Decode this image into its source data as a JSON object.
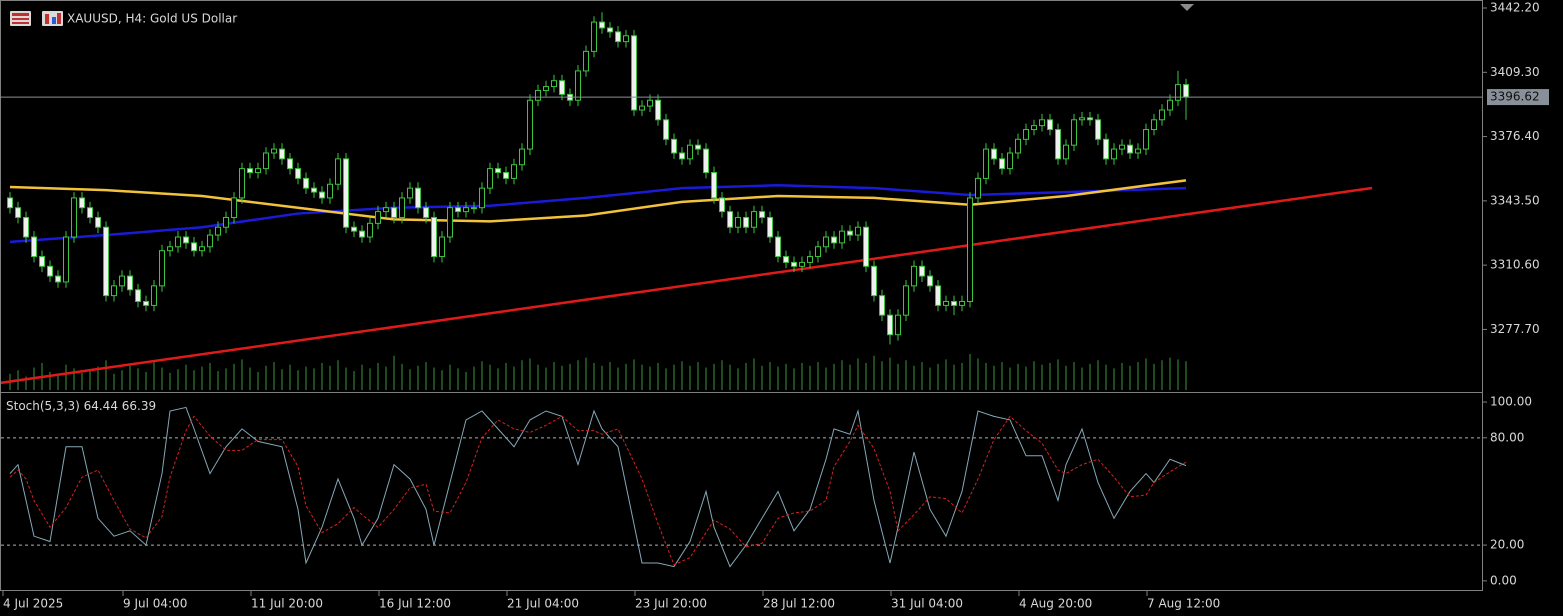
{
  "header": {
    "title": "XAUUSD, H4:  Gold US Dollar"
  },
  "chart_data": [
    {
      "type": "candlestick",
      "categories": [
        "4 Jul 2025",
        null,
        null,
        null,
        null,
        null,
        null,
        null,
        null,
        null,
        null,
        null,
        null,
        null,
        null,
        "9 Jul 04:00",
        null,
        null,
        null,
        null,
        null,
        null,
        null,
        null,
        null,
        null,
        null,
        null,
        null,
        null,
        null,
        "11 Jul 20:00",
        null,
        null,
        null,
        null,
        null,
        null,
        null,
        null,
        null,
        null,
        null,
        null,
        null,
        null,
        null,
        "16 Jul 12:00",
        null,
        null,
        null,
        null,
        null,
        null,
        null,
        null,
        null,
        null,
        null,
        null,
        null,
        null,
        null,
        "21 Jul 04:00",
        null,
        null,
        null,
        null,
        null,
        null,
        null,
        null,
        null,
        null,
        null,
        null,
        null,
        null,
        null,
        "23 Jul 20:00",
        null,
        null,
        null,
        null,
        null,
        null,
        null,
        null,
        null,
        null,
        null,
        null,
        null,
        null,
        null,
        "28 Jul 12:00",
        null,
        null,
        null,
        null,
        null,
        null,
        null,
        null,
        null,
        null,
        null,
        null,
        null,
        null,
        null,
        "31 Jul 04:00",
        null,
        null,
        null,
        null,
        null,
        null,
        null,
        null,
        null,
        null,
        null,
        null,
        null,
        null,
        null,
        "4 Aug 20:00",
        null,
        null,
        null,
        null,
        null,
        null,
        null,
        null,
        null,
        null,
        null,
        null,
        null,
        null,
        null,
        "7 Aug 12:00",
        null,
        null,
        null,
        null
      ],
      "open": [
        3345,
        3340,
        3335,
        3325,
        3315,
        3310,
        3305,
        3302,
        3325,
        3345,
        3340,
        3335,
        3330,
        3295,
        3300,
        3305,
        3298,
        3292,
        3290,
        3300,
        3318,
        3320,
        3325,
        3322,
        3318,
        3320,
        3326,
        3330,
        3335,
        3345,
        3360,
        3358,
        3360,
        3368,
        3370,
        3365,
        3360,
        3355,
        3350,
        3348,
        3345,
        3352,
        3365,
        3330,
        3328,
        3325,
        3332,
        3338,
        3340,
        3335,
        3345,
        3350,
        3340,
        3335,
        3315,
        3325,
        3340,
        3338,
        3340,
        3340,
        3350,
        3360,
        3358,
        3355,
        3362,
        3370,
        3395,
        3400,
        3402,
        3405,
        3398,
        3395,
        3410,
        3420,
        3435,
        3432,
        3430,
        3425,
        3428,
        3390,
        3392,
        3395,
        3385,
        3375,
        3368,
        3365,
        3372,
        3370,
        3358,
        3345,
        3338,
        3330,
        3335,
        3330,
        3338,
        3335,
        3325,
        3315,
        3312,
        3310,
        3312,
        3315,
        3320,
        3325,
        3322,
        3328,
        3326,
        3330,
        3310,
        3295,
        3285,
        3275,
        3285,
        3300,
        3310,
        3305,
        3300,
        3290,
        3292,
        3290,
        3292,
        3345,
        3355,
        3370,
        3365,
        3360,
        3368,
        3375,
        3380,
        3382,
        3385,
        3380,
        3365,
        3372,
        3385,
        3386,
        3385,
        3375,
        3365,
        3370,
        3372,
        3368,
        3370,
        3380,
        3385,
        3390,
        3395,
        3403
      ],
      "high": [
        3348,
        3343,
        3338,
        3328,
        3318,
        3313,
        3308,
        3328,
        3348,
        3348,
        3343,
        3338,
        3333,
        3303,
        3308,
        3308,
        3301,
        3295,
        3303,
        3321,
        3323,
        3328,
        3328,
        3325,
        3323,
        3329,
        3333,
        3338,
        3348,
        3363,
        3363,
        3363,
        3371,
        3373,
        3373,
        3368,
        3363,
        3358,
        3353,
        3351,
        3355,
        3368,
        3368,
        3333,
        3331,
        3335,
        3341,
        3343,
        3343,
        3348,
        3353,
        3353,
        3343,
        3338,
        3328,
        3343,
        3343,
        3343,
        3343,
        3353,
        3363,
        3363,
        3361,
        3365,
        3373,
        3398,
        3403,
        3405,
        3408,
        3408,
        3401,
        3413,
        3423,
        3438,
        3440,
        3435,
        3433,
        3431,
        3431,
        3395,
        3398,
        3398,
        3388,
        3378,
        3371,
        3375,
        3375,
        3373,
        3361,
        3348,
        3341,
        3338,
        3338,
        3341,
        3341,
        3338,
        3328,
        3318,
        3315,
        3315,
        3318,
        3323,
        3328,
        3328,
        3331,
        3331,
        3333,
        3333,
        3313,
        3298,
        3288,
        3288,
        3303,
        3313,
        3313,
        3308,
        3303,
        3295,
        3295,
        3295,
        3348,
        3358,
        3373,
        3373,
        3368,
        3371,
        3378,
        3383,
        3385,
        3388,
        3388,
        3383,
        3375,
        3388,
        3389,
        3389,
        3388,
        3378,
        3373,
        3375,
        3375,
        3373,
        3383,
        3388,
        3393,
        3398,
        3410,
        3406
      ],
      "low": [
        3337,
        3332,
        3322,
        3312,
        3307,
        3302,
        3299,
        3299,
        3322,
        3337,
        3332,
        3327,
        3292,
        3292,
        3297,
        3295,
        3289,
        3287,
        3287,
        3297,
        3315,
        3317,
        3319,
        3315,
        3315,
        3317,
        3323,
        3327,
        3332,
        3342,
        3355,
        3355,
        3357,
        3365,
        3362,
        3357,
        3352,
        3347,
        3345,
        3342,
        3342,
        3349,
        3327,
        3325,
        3322,
        3322,
        3329,
        3335,
        3332,
        3332,
        3342,
        3337,
        3332,
        3312,
        3312,
        3322,
        3335,
        3335,
        3337,
        3337,
        3347,
        3355,
        3352,
        3352,
        3359,
        3367,
        3392,
        3397,
        3399,
        3395,
        3392,
        3392,
        3407,
        3417,
        3429,
        3427,
        3422,
        3422,
        3387,
        3387,
        3389,
        3382,
        3372,
        3365,
        3362,
        3362,
        3367,
        3355,
        3342,
        3335,
        3327,
        3327,
        3327,
        3327,
        3332,
        3322,
        3312,
        3309,
        3307,
        3307,
        3309,
        3312,
        3317,
        3319,
        3319,
        3323,
        3323,
        3307,
        3292,
        3282,
        3270,
        3272,
        3282,
        3297,
        3302,
        3297,
        3287,
        3287,
        3285,
        3287,
        3289,
        3342,
        3352,
        3362,
        3357,
        3357,
        3365,
        3372,
        3377,
        3379,
        3377,
        3362,
        3362,
        3369,
        3382,
        3382,
        3372,
        3362,
        3362,
        3367,
        3365,
        3365,
        3367,
        3377,
        3382,
        3387,
        3392,
        3385
      ],
      "close": [
        3340,
        3335,
        3325,
        3315,
        3310,
        3305,
        3302,
        3325,
        3345,
        3340,
        3335,
        3330,
        3295,
        3300,
        3305,
        3298,
        3292,
        3290,
        3300,
        3318,
        3320,
        3325,
        3322,
        3318,
        3320,
        3326,
        3330,
        3335,
        3345,
        3360,
        3358,
        3360,
        3368,
        3370,
        3365,
        3360,
        3355,
        3350,
        3348,
        3345,
        3352,
        3365,
        3330,
        3328,
        3325,
        3332,
        3338,
        3340,
        3335,
        3345,
        3350,
        3340,
        3335,
        3315,
        3325,
        3340,
        3338,
        3340,
        3340,
        3350,
        3360,
        3358,
        3355,
        3362,
        3370,
        3395,
        3400,
        3402,
        3405,
        3398,
        3395,
        3410,
        3420,
        3435,
        3432,
        3430,
        3425,
        3428,
        3390,
        3392,
        3395,
        3385,
        3375,
        3368,
        3365,
        3372,
        3370,
        3358,
        3345,
        3338,
        3330,
        3335,
        3330,
        3338,
        3335,
        3325,
        3315,
        3312,
        3310,
        3312,
        3315,
        3320,
        3325,
        3322,
        3328,
        3326,
        3330,
        3310,
        3295,
        3285,
        3275,
        3285,
        3300,
        3310,
        3305,
        3300,
        3290,
        3292,
        3290,
        3292,
        3345,
        3355,
        3370,
        3365,
        3360,
        3368,
        3375,
        3380,
        3382,
        3385,
        3380,
        3365,
        3372,
        3385,
        3386,
        3385,
        3375,
        3365,
        3370,
        3372,
        3368,
        3370,
        3380,
        3385,
        3390,
        3395,
        3403,
        3396.62
      ],
      "volume": [
        18,
        22,
        15,
        25,
        30,
        20,
        17,
        28,
        24,
        19,
        21,
        26,
        33,
        18,
        22,
        27,
        24,
        20,
        31,
        25,
        19,
        23,
        28,
        22,
        26,
        30,
        21,
        24,
        29,
        34,
        25,
        20,
        27,
        31,
        23,
        28,
        22,
        26,
        24,
        30,
        27,
        33,
        25,
        21,
        28,
        24,
        30,
        26,
        38,
        29,
        23,
        27,
        31,
        25,
        22,
        28,
        24,
        20,
        26,
        32,
        28,
        24,
        30,
        26,
        33,
        35,
        28,
        25,
        31,
        27,
        29,
        33,
        36,
        30,
        27,
        31,
        25,
        29,
        34,
        28,
        26,
        30,
        24,
        28,
        32,
        27,
        31,
        25,
        29,
        33,
        28,
        24,
        30,
        35,
        27,
        31,
        26,
        29,
        24,
        30,
        27,
        31,
        25,
        29,
        33,
        28,
        35,
        30,
        38,
        32,
        36,
        29,
        33,
        27,
        31,
        25,
        29,
        34,
        28,
        30,
        40,
        35,
        30,
        27,
        31,
        25,
        29,
        26,
        32,
        28,
        30,
        34,
        27,
        31,
        25,
        29,
        33,
        28,
        24,
        30,
        27,
        31,
        35,
        29,
        33,
        36,
        34,
        32
      ],
      "ylim": [
        3246.7,
        3446.3
      ],
      "yticks": [
        {
          "value": 3442.2,
          "label": "3442.20"
        },
        {
          "value": 3409.3,
          "label": "3409.30"
        },
        {
          "value": 3376.4,
          "label": "3376.40"
        },
        {
          "value": 3343.5,
          "label": "3343.50"
        },
        {
          "value": 3310.6,
          "label": "3310.60"
        },
        {
          "value": 3277.7,
          "label": "3277.70"
        }
      ],
      "last_price": {
        "value": 3396.62,
        "label": "3396.62"
      },
      "colors": {
        "candle": "#3ec43e",
        "bull_body": "#000000",
        "bear_body": "#f0f0f0",
        "volume": "#3a9a3a",
        "last_price": "#8a9099"
      },
      "lines": [
        {
          "x": [
            0,
            12,
            24,
            36,
            48,
            60,
            72,
            84,
            96,
            108,
            120,
            132,
            147
          ],
          "values": [
            3322.5,
            3326,
            3330,
            3337,
            3340,
            3341,
            3345,
            3350,
            3351.5,
            3350,
            3346.5,
            3348,
            3350
          ],
          "color": "#1a1ad8"
        },
        {
          "x": [
            0,
            12,
            24,
            36,
            48,
            60,
            72,
            84,
            96,
            108,
            120,
            132,
            147
          ],
          "values": [
            3350.6,
            3349,
            3346,
            3340,
            3334,
            3333,
            3336,
            3343,
            3346,
            3345,
            3341.5,
            3346,
            3354
          ],
          "color": "#f2c23a"
        }
      ],
      "trendline": {
        "x": [
          -1.25,
          170.25
        ],
        "values": [
          3250.3,
          3350.1
        ],
        "color": "#e01a1a"
      }
    },
    {
      "type": "line",
      "title": "Stoch(5,3,3)",
      "x": [
        0,
        1,
        2,
        3,
        5,
        7,
        9,
        11,
        13,
        15,
        17,
        19,
        20,
        22,
        23,
        25,
        27,
        29,
        31,
        34,
        36,
        37,
        39,
        41,
        43,
        44,
        46,
        48,
        50,
        52,
        53,
        55,
        57,
        59,
        61,
        63,
        65,
        67,
        69,
        71,
        73,
        74,
        76,
        79,
        81,
        83,
        85,
        87,
        88,
        90,
        92,
        94,
        96,
        98,
        100,
        102,
        103,
        105,
        106,
        108,
        110,
        111,
        113,
        115,
        117,
        119,
        121,
        123,
        125,
        127,
        129,
        131,
        132,
        134,
        136,
        138,
        140,
        142,
        143,
        145,
        147
      ],
      "series": [
        {
          "color": "#86a8b8",
          "values": [
            60,
            65,
            45,
            25,
            22,
            75,
            75,
            35,
            25,
            28,
            20,
            60,
            95,
            97,
            85,
            60,
            75,
            85,
            78,
            75,
            40,
            10,
            30,
            57,
            35,
            20,
            35,
            65,
            57,
            40,
            20,
            55,
            90,
            95,
            85,
            75,
            90,
            95,
            92,
            65,
            95,
            85,
            75,
            10,
            10,
            8,
            22,
            50,
            30,
            8,
            20,
            35,
            50,
            28,
            40,
            68,
            85,
            82,
            95,
            45,
            10,
            30,
            72,
            40,
            25,
            50,
            95,
            92,
            90,
            70,
            70,
            45,
            65,
            85,
            55,
            35,
            50,
            60,
            55,
            68,
            64.44
          ]
        },
        {
          "color": "#d82020",
          "dashed": true,
          "values": [
            58,
            62,
            57,
            45,
            30,
            41,
            58,
            62,
            45,
            29,
            24,
            36,
            58,
            84,
            92,
            81,
            73,
            73,
            79,
            79,
            64,
            42,
            27,
            32,
            41,
            37,
            30,
            40,
            52,
            54,
            39,
            38,
            55,
            80,
            90,
            85,
            83,
            87,
            92,
            84,
            84,
            82,
            85,
            57,
            32,
            9,
            13,
            27,
            34,
            29,
            19,
            21,
            35,
            38,
            39,
            45,
            64,
            78,
            87,
            74,
            50,
            28,
            37,
            47,
            46,
            38,
            57,
            79,
            92,
            84,
            77,
            62,
            60,
            65,
            68,
            58,
            47,
            48,
            55,
            61,
            66.39
          ]
        }
      ],
      "ylim": [
        -5.1,
        104.5
      ],
      "yticks": [
        {
          "value": 100,
          "label": "100.00"
        },
        {
          "value": 80,
          "label": "80.00",
          "level": true
        },
        {
          "value": 20,
          "label": "20.00",
          "level": true
        },
        {
          "value": 0,
          "label": "0.00"
        }
      ]
    }
  ]
}
